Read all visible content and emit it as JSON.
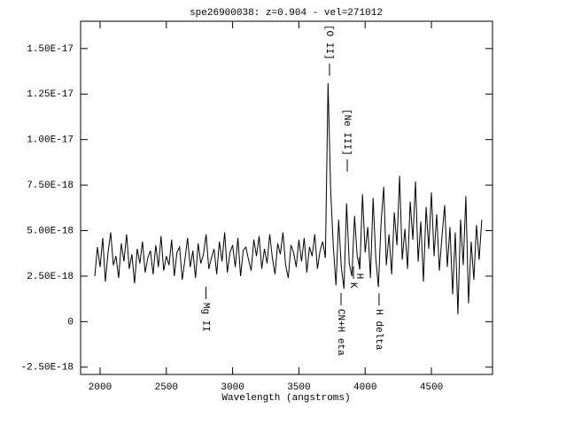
{
  "chart_data": {
    "type": "line",
    "title": "spe26900038: z=0.904 - vel=271012",
    "xlabel": "Wavelength (angstroms)",
    "xlim": [
      1853,
      4961
    ],
    "ylim": [
      -2.9e-18,
      1.65e-17
    ],
    "xticks": [
      2000,
      2500,
      3000,
      3500,
      4000,
      4500
    ],
    "yticks": [
      {
        "value": -2.5e-18,
        "label": "-2.50E-18"
      },
      0,
      {
        "value": 2.5e-18,
        "label": "2.50E-18"
      },
      {
        "value": 5e-18,
        "label": "5.00E-18"
      },
      {
        "value": 7.5e-18,
        "label": "7.50E-18"
      },
      {
        "value": 1e-17,
        "label": "1.00E-17"
      },
      {
        "value": 1.25e-17,
        "label": "1.25E-17"
      },
      {
        "value": 1.5e-17,
        "label": "1.50E-17"
      }
    ],
    "color": "#000000",
    "x": [
      1960,
      1980,
      2000,
      2020,
      2040,
      2060,
      2080,
      2100,
      2120,
      2140,
      2160,
      2180,
      2200,
      2220,
      2240,
      2260,
      2280,
      2300,
      2320,
      2340,
      2360,
      2380,
      2400,
      2420,
      2440,
      2460,
      2480,
      2500,
      2520,
      2540,
      2560,
      2580,
      2600,
      2620,
      2640,
      2660,
      2680,
      2700,
      2720,
      2740,
      2760,
      2780,
      2800,
      2820,
      2840,
      2860,
      2880,
      2900,
      2920,
      2940,
      2960,
      2980,
      3000,
      3020,
      3040,
      3060,
      3080,
      3100,
      3120,
      3140,
      3160,
      3180,
      3200,
      3220,
      3240,
      3260,
      3280,
      3300,
      3320,
      3340,
      3360,
      3380,
      3400,
      3420,
      3440,
      3460,
      3480,
      3500,
      3520,
      3540,
      3560,
      3580,
      3600,
      3620,
      3640,
      3660,
      3680,
      3700,
      3720,
      3740,
      3760,
      3780,
      3800,
      3820,
      3840,
      3860,
      3880,
      3900,
      3920,
      3940,
      3960,
      3980,
      4000,
      4020,
      4040,
      4060,
      4080,
      4100,
      4120,
      4140,
      4160,
      4180,
      4200,
      4220,
      4240,
      4260,
      4280,
      4300,
      4320,
      4340,
      4360,
      4380,
      4400,
      4420,
      4440,
      4460,
      4480,
      4500,
      4520,
      4540,
      4560,
      4580,
      4600,
      4620,
      4640,
      4660,
      4680,
      4700,
      4720,
      4740,
      4760,
      4780,
      4800,
      4820,
      4840,
      4860,
      4880
    ],
    "values": [
      2.5e-18,
      4.1e-18,
      3e-18,
      4.6e-18,
      2.2e-18,
      3.8e-18,
      4.9e-18,
      3.1e-18,
      3.6e-18,
      2.4e-18,
      4.3e-18,
      3.3e-18,
      4.8e-18,
      2.9e-18,
      3.7e-18,
      2.1e-18,
      4e-18,
      3.2e-18,
      4.4e-18,
      2.7e-18,
      3.5e-18,
      3.9e-18,
      2.6e-18,
      4.2e-18,
      3e-18,
      4.7e-18,
      2.8e-18,
      3.6e-18,
      3.1e-18,
      4.5e-18,
      2.5e-18,
      3.8e-18,
      4.1e-18,
      2.3e-18,
      3.4e-18,
      4.6e-18,
      3e-18,
      3.9e-18,
      2.4e-18,
      4.3e-18,
      3.2e-18,
      3.7e-18,
      4.8e-18,
      2.9e-18,
      3.5e-18,
      4e-18,
      2.6e-18,
      4.4e-18,
      3.3e-18,
      4.9e-18,
      2.7e-18,
      3.8e-18,
      4.2e-18,
      3e-18,
      4.6e-18,
      2.5e-18,
      3.9e-18,
      4.1e-18,
      3.4e-18,
      2.8e-18,
      4.5e-18,
      3.6e-18,
      4.7e-18,
      2.9e-18,
      4e-18,
      3.2e-18,
      4.8e-18,
      3.5e-18,
      2.6e-18,
      4.3e-18,
      3.7e-18,
      4.9e-18,
      3.1e-18,
      2.4e-18,
      4.2e-18,
      3.8e-18,
      3e-18,
      4.5e-18,
      3.3e-18,
      4.6e-18,
      2.7e-18,
      4.1e-18,
      3.6e-18,
      4.8e-18,
      2.9e-18,
      3.9e-18,
      4.4e-18,
      3.5e-18,
      1.31e-17,
      7.2e-18,
      4.1e-18,
      2e-18,
      5.6e-18,
      3e-18,
      1.8e-18,
      6.5e-18,
      3.2e-18,
      2.5e-18,
      5.8e-18,
      3.6e-18,
      2.9e-18,
      7e-18,
      3.8e-18,
      5.2e-18,
      2.4e-18,
      6.8e-18,
      3.5e-18,
      1.9e-18,
      5.4e-18,
      7.4e-18,
      3.1e-18,
      4.8e-18,
      2.6e-18,
      6e-18,
      4.2e-18,
      8e-18,
      3.4e-18,
      5.1e-18,
      2.9e-18,
      6.6e-18,
      4.5e-18,
      7.7e-18,
      3.3e-18,
      5.5e-18,
      2.2e-18,
      6.3e-18,
      4e-18,
      7.1e-18,
      3.6e-18,
      5.9e-18,
      2.8e-18,
      4.7e-18,
      6.4e-18,
      3e-18,
      5.2e-18,
      1.5e-18,
      4.9e-18,
      4e-19,
      5.6e-18,
      3.1e-18,
      6.9e-18,
      1e-18,
      4.4e-18,
      2.3e-18,
      5.3e-18,
      3.4e-18,
      5.6e-18
    ],
    "annotations": [
      {
        "text": "[O II]",
        "x": 3731,
        "y": 1.534e-17
      },
      {
        "text": "[Ne III]",
        "x": 3865,
        "y": 1.04e-17
      },
      {
        "text": "K",
        "x": 3912,
        "y": 2e-18
      },
      {
        "text": "H",
        "x": 3958,
        "y": 2.5e-18
      },
      {
        "text": "Mg II",
        "x": 2799,
        "y": 2.4e-19
      },
      {
        "text": "CN+H eta",
        "x": 3818,
        "y": -5.8e-19
      },
      {
        "text": "H delta",
        "x": 4105,
        "y": -4.4e-19
      }
    ]
  }
}
